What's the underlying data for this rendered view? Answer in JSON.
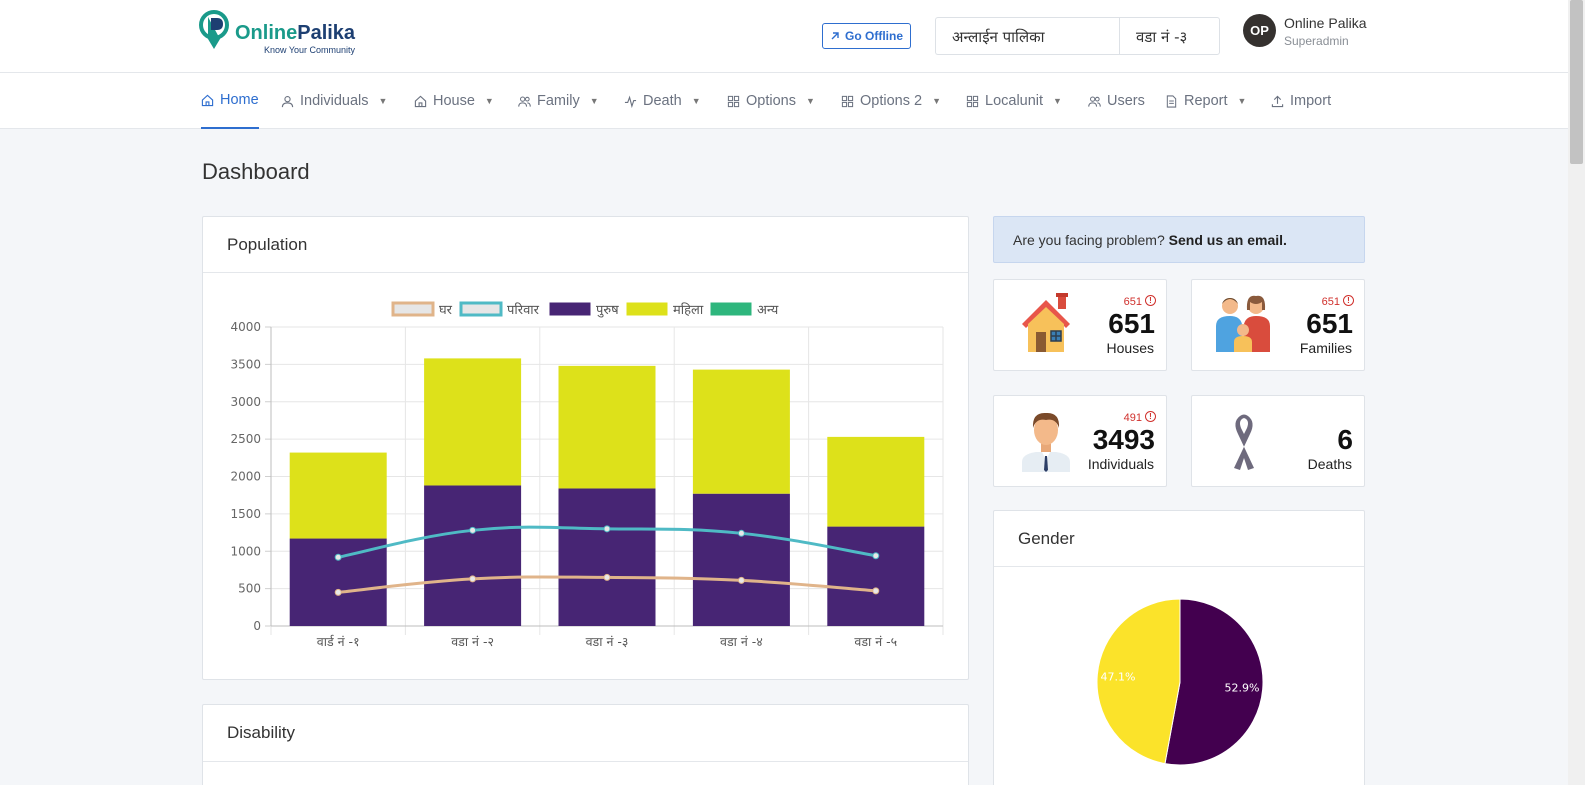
{
  "header": {
    "logo_online": "Online",
    "logo_palika": "Palika",
    "logo_tagline": "Know Your Community",
    "go_offline_label": "Go Offline",
    "palika_value": "अन्लाईन पालिका",
    "ward_value": "वडा नं -३",
    "avatar_initials": "OP",
    "user_name": "Online Palika",
    "user_role": "Superadmin"
  },
  "nav": {
    "items": [
      {
        "label": "Home",
        "icon": "home-icon",
        "caret": false,
        "active": true
      },
      {
        "label": "Individuals",
        "icon": "user-icon",
        "caret": true
      },
      {
        "label": "House",
        "icon": "home-icon",
        "caret": true
      },
      {
        "label": "Family",
        "icon": "users-icon",
        "caret": true
      },
      {
        "label": "Death",
        "icon": "activity-icon",
        "caret": true
      },
      {
        "label": "Options",
        "icon": "grid-icon",
        "caret": true
      },
      {
        "label": "Options 2",
        "icon": "grid-icon",
        "caret": true
      },
      {
        "label": "Localunit",
        "icon": "grid-icon",
        "caret": true
      },
      {
        "label": "Users",
        "icon": "users-icon",
        "caret": false
      },
      {
        "label": "Report",
        "icon": "file-icon",
        "caret": true
      },
      {
        "label": "Import",
        "icon": "upload-icon",
        "caret": false
      }
    ]
  },
  "page_title": "Dashboard",
  "population_card": {
    "title": "Population"
  },
  "disability_card": {
    "title": "Disability"
  },
  "gender_card": {
    "title": "Gender"
  },
  "alert": {
    "text": "Are you facing problem?",
    "link": "Send us an email."
  },
  "stats": [
    {
      "id": "houses",
      "small": "651",
      "value": "651",
      "label": "Houses",
      "icon": "house-icon"
    },
    {
      "id": "families",
      "small": "651",
      "value": "651",
      "label": "Families",
      "icon": "family-icon"
    },
    {
      "id": "individuals",
      "small": "491",
      "value": "3493",
      "label": "Individuals",
      "icon": "person-icon"
    },
    {
      "id": "deaths",
      "small": "",
      "value": "6",
      "label": "Deaths",
      "icon": "ribbon-icon"
    }
  ],
  "colors": {
    "accent": "#2e6ecf",
    "ghar": "#e0b48a",
    "pariwar": "#4fbac5",
    "purush": "#472574",
    "mahila": "#dde11a",
    "anya": "#2eb67d",
    "gender_male": "#43004f",
    "gender_female": "#fbe32a"
  },
  "chart_data": [
    {
      "type": "bar",
      "categories": [
        "वार्ड नं -१",
        "वडा नं -२",
        "वडा नं -३",
        "वडा नं -४",
        "वडा नं -५"
      ],
      "ylim": [
        0,
        4000
      ],
      "yticks": [
        0,
        500,
        1000,
        1500,
        2000,
        2500,
        3000,
        3500,
        4000
      ],
      "grid": true,
      "legend": "top",
      "stacked": true,
      "series": [
        {
          "name": "घर",
          "kind": "line",
          "values": [
            450,
            630,
            650,
            610,
            470
          ]
        },
        {
          "name": "परिवार",
          "kind": "line",
          "values": [
            920,
            1280,
            1300,
            1240,
            940
          ]
        },
        {
          "name": "पुरुष",
          "kind": "bar",
          "values": [
            1170,
            1880,
            1840,
            1770,
            1330
          ]
        },
        {
          "name": "महिला",
          "kind": "bar",
          "values": [
            1150,
            1700,
            1640,
            1660,
            1200
          ]
        },
        {
          "name": "अन्य",
          "kind": "bar",
          "values": [
            0,
            0,
            0,
            0,
            0
          ]
        }
      ]
    },
    {
      "type": "pie",
      "labels": [
        "",
        ""
      ],
      "values": [
        52.9,
        47.1
      ],
      "data_labels": [
        "52.9%",
        "47.1%"
      ]
    }
  ]
}
